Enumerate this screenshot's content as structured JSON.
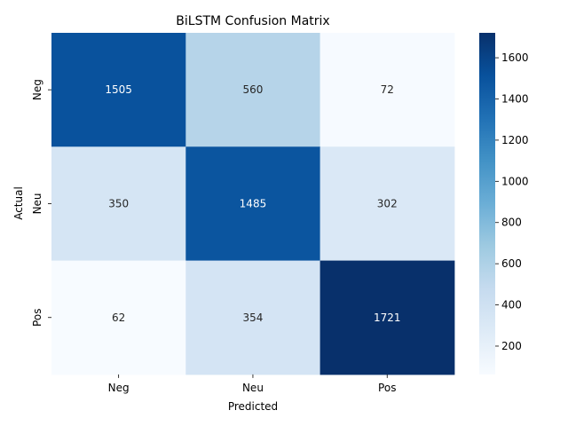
{
  "chart_data": {
    "type": "heatmap",
    "title": "BiLSTM Confusion Matrix",
    "xlabel": "Predicted",
    "ylabel": "Actual",
    "x_categories": [
      "Neg",
      "Neu",
      "Pos"
    ],
    "y_categories": [
      "Neg",
      "Neu",
      "Pos"
    ],
    "values": [
      [
        1505,
        560,
        72
      ],
      [
        350,
        1485,
        302
      ],
      [
        62,
        354,
        1721
      ]
    ],
    "colormap": "Blues",
    "colorbar": {
      "min": 62,
      "max": 1721,
      "ticks": [
        200,
        400,
        600,
        800,
        1000,
        1200,
        1400,
        1600
      ]
    }
  }
}
